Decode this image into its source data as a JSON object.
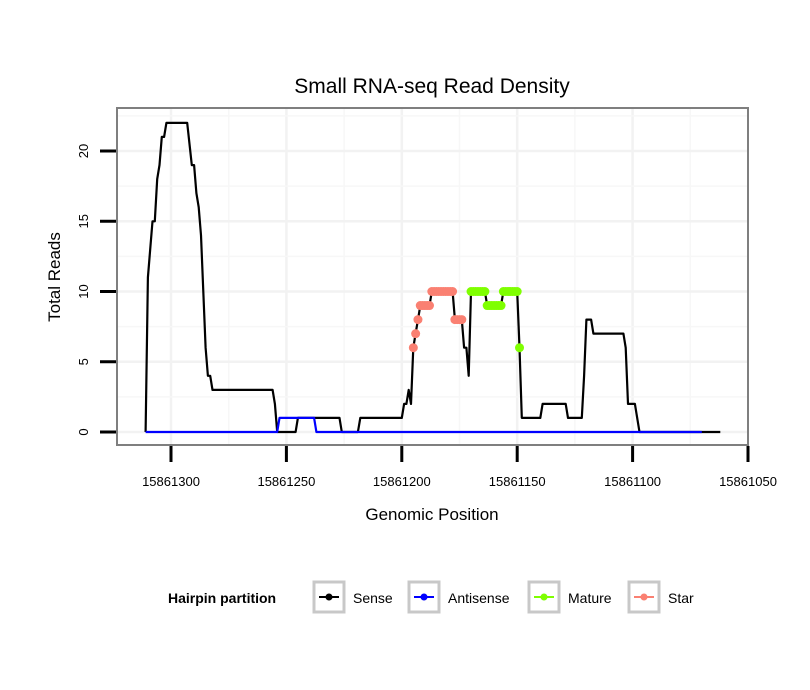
{
  "chart_data": {
    "type": "line",
    "title": "Small RNA-seq Read Density",
    "xlabel": "Genomic Position",
    "ylabel": "Total Reads",
    "x_reversed": true,
    "xlim": [
      15861325,
      15861050
    ],
    "ylim": [
      -1,
      23
    ],
    "xticks": [
      15861300,
      15861250,
      15861200,
      15861150,
      15861100,
      15861050
    ],
    "xtick_labels": [
      "15861300",
      "15861250",
      "15861200",
      "15861150",
      "15861100",
      "15861050"
    ],
    "yticks": [
      0,
      5,
      10,
      15,
      20
    ],
    "ytick_labels": [
      "0",
      "5",
      "10",
      "15",
      "20"
    ],
    "grid": true,
    "legend": {
      "title": "Hairpin partition",
      "placement": "bottom",
      "entries": [
        {
          "name": "Sense",
          "color": "#000000"
        },
        {
          "name": "Antisense",
          "color": "#0000ff"
        },
        {
          "name": "Mature",
          "color": "#7fff00"
        },
        {
          "name": "Star",
          "color": "#fa8072"
        }
      ]
    },
    "series": [
      {
        "name": "Sense",
        "color": "#000000",
        "style": "line",
        "points": [
          [
            15861311,
            0
          ],
          [
            15861310,
            11
          ],
          [
            15861309,
            13
          ],
          [
            15861308,
            15
          ],
          [
            15861307,
            15
          ],
          [
            15861306,
            18
          ],
          [
            15861305,
            19
          ],
          [
            15861304,
            21
          ],
          [
            15861303,
            21
          ],
          [
            15861302,
            22
          ],
          [
            15861293,
            22
          ],
          [
            15861291,
            19
          ],
          [
            15861290,
            19
          ],
          [
            15861289,
            17
          ],
          [
            15861288,
            16
          ],
          [
            15861287,
            14
          ],
          [
            15861286,
            10
          ],
          [
            15861285,
            6
          ],
          [
            15861284,
            4
          ],
          [
            15861283,
            4
          ],
          [
            15861282,
            3
          ],
          [
            15861256,
            3
          ],
          [
            15861255,
            2
          ],
          [
            15861254,
            0
          ],
          [
            15861246,
            0
          ],
          [
            15861245,
            1
          ],
          [
            15861227,
            1
          ],
          [
            15861226,
            0
          ],
          [
            15861219,
            0
          ],
          [
            15861218,
            1
          ],
          [
            15861200,
            1
          ],
          [
            15861199,
            2
          ],
          [
            15861198,
            2
          ],
          [
            15861197,
            3
          ],
          [
            15861196,
            2
          ],
          [
            15861195,
            6
          ],
          [
            15861194,
            7
          ],
          [
            15861193,
            8
          ],
          [
            15861192,
            9
          ],
          [
            15861191,
            9
          ],
          [
            15861189,
            9
          ],
          [
            15861188,
            9
          ],
          [
            15861187,
            10
          ],
          [
            15861178,
            10
          ],
          [
            15861177,
            8
          ],
          [
            15861174,
            8
          ],
          [
            15861173,
            6
          ],
          [
            15861172,
            6
          ],
          [
            15861171,
            4
          ],
          [
            15861170,
            10
          ],
          [
            15861164,
            10
          ],
          [
            15861163,
            9
          ],
          [
            15861157,
            9
          ],
          [
            15861156,
            10
          ],
          [
            15861150,
            10
          ],
          [
            15861149,
            6
          ],
          [
            15861148,
            1
          ],
          [
            15861140,
            1
          ],
          [
            15861139,
            2
          ],
          [
            15861129,
            2
          ],
          [
            15861128,
            1
          ],
          [
            15861122,
            1
          ],
          [
            15861121,
            4
          ],
          [
            15861120,
            8
          ],
          [
            15861118,
            8
          ],
          [
            15861117,
            7
          ],
          [
            15861104,
            7
          ],
          [
            15861103,
            6
          ],
          [
            15861102,
            2
          ],
          [
            15861099,
            2
          ],
          [
            15861097,
            0
          ],
          [
            15861062,
            0
          ]
        ]
      },
      {
        "name": "Antisense",
        "color": "#0000ff",
        "style": "line",
        "points": [
          [
            15861311,
            0
          ],
          [
            15861254,
            0
          ],
          [
            15861253,
            1
          ],
          [
            15861238,
            1
          ],
          [
            15861237,
            0
          ],
          [
            15861070,
            0
          ]
        ]
      },
      {
        "name": "Mature",
        "color": "#7fff00",
        "style": "points",
        "points": [
          [
            15861170,
            10
          ],
          [
            15861169,
            10
          ],
          [
            15861168,
            10
          ],
          [
            15861167,
            10
          ],
          [
            15861166,
            10
          ],
          [
            15861165,
            10
          ],
          [
            15861164,
            10
          ],
          [
            15861163,
            9
          ],
          [
            15861162,
            9
          ],
          [
            15861161,
            9
          ],
          [
            15861160,
            9
          ],
          [
            15861159,
            9
          ],
          [
            15861158,
            9
          ],
          [
            15861157,
            9
          ],
          [
            15861156,
            10
          ],
          [
            15861155,
            10
          ],
          [
            15861154,
            10
          ],
          [
            15861153,
            10
          ],
          [
            15861152,
            10
          ],
          [
            15861151,
            10
          ],
          [
            15861150,
            10
          ],
          [
            15861149,
            6
          ]
        ]
      },
      {
        "name": "Star",
        "color": "#fa8072",
        "style": "points",
        "points": [
          [
            15861195,
            6
          ],
          [
            15861194,
            7
          ],
          [
            15861193,
            8
          ],
          [
            15861192,
            9
          ],
          [
            15861191,
            9
          ],
          [
            15861190,
            9
          ],
          [
            15861189,
            9
          ],
          [
            15861188,
            9
          ],
          [
            15861187,
            10
          ],
          [
            15861186,
            10
          ],
          [
            15861185,
            10
          ],
          [
            15861184,
            10
          ],
          [
            15861183,
            10
          ],
          [
            15861182,
            10
          ],
          [
            15861181,
            10
          ],
          [
            15861180,
            10
          ],
          [
            15861179,
            10
          ],
          [
            15861178,
            10
          ],
          [
            15861177,
            8
          ],
          [
            15861176,
            8
          ],
          [
            15861175,
            8
          ],
          [
            15861174,
            8
          ]
        ]
      }
    ]
  }
}
